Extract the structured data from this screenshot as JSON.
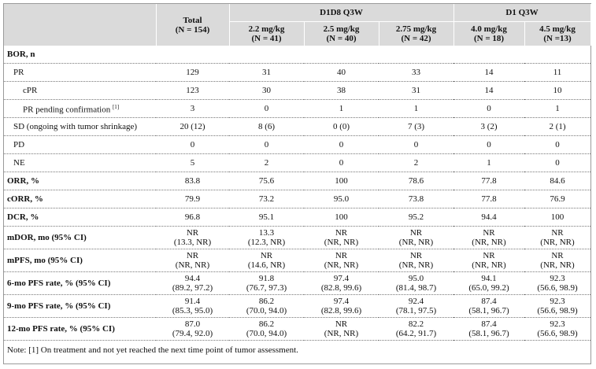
{
  "table": {
    "header": {
      "total": {
        "title": "Total",
        "n": "(N = 154)"
      },
      "groups": [
        {
          "title": "D1D8 Q3W",
          "columns": [
            {
              "dose": "2.2 mg/kg",
              "n": "(N = 41)"
            },
            {
              "dose": "2.5 mg/kg",
              "n": "(N = 40)"
            },
            {
              "dose": "2.75 mg/kg",
              "n": "(N = 42)"
            }
          ]
        },
        {
          "title": "D1 Q3W",
          "columns": [
            {
              "dose": "4.0 mg/kg",
              "n": "(N = 18)"
            },
            {
              "dose": "4.5 mg/kg",
              "n": "(N =13)"
            }
          ]
        }
      ]
    },
    "rows": [
      {
        "label": "BOR, n"
      },
      {
        "label": "PR",
        "values": [
          "129",
          "31",
          "40",
          "33",
          "14",
          "11"
        ]
      },
      {
        "label": "cPR",
        "values": [
          "123",
          "30",
          "38",
          "31",
          "14",
          "10"
        ]
      },
      {
        "label": "PR pending confirmation",
        "sup": "[1]",
        "values": [
          "3",
          "0",
          "1",
          "1",
          "0",
          "1"
        ]
      },
      {
        "label": "SD (ongoing with tumor shrinkage)",
        "values": [
          "20 (12)",
          "8 (6)",
          "0 (0)",
          "7 (3)",
          "3 (2)",
          "2 (1)"
        ]
      },
      {
        "label": "PD",
        "values": [
          "0",
          "0",
          "0",
          "0",
          "0",
          "0"
        ]
      },
      {
        "label": "NE",
        "values": [
          "5",
          "2",
          "0",
          "2",
          "1",
          "0"
        ]
      },
      {
        "label": "ORR, %",
        "values": [
          "83.8",
          "75.6",
          "100",
          "78.6",
          "77.8",
          "84.6"
        ]
      },
      {
        "label": "cORR, %",
        "values": [
          "79.9",
          "73.2",
          "95.0",
          "73.8",
          "77.8",
          "76.9"
        ]
      },
      {
        "label": "DCR, %",
        "values": [
          "96.8",
          "95.1",
          "100",
          "95.2",
          "94.4",
          "100"
        ]
      },
      {
        "label": "mDOR, mo (95% CI)",
        "values": [
          {
            "value": "NR",
            "ci": "(13.3, NR)"
          },
          {
            "value": "13.3",
            "ci": "(12.3, NR)"
          },
          {
            "value": "NR",
            "ci": "(NR, NR)"
          },
          {
            "value": "NR",
            "ci": "(NR, NR)"
          },
          {
            "value": "NR",
            "ci": "(NR, NR)"
          },
          {
            "value": "NR",
            "ci": "(NR, NR)"
          }
        ]
      },
      {
        "label": "mPFS, mo (95% CI)",
        "values": [
          {
            "value": "NR",
            "ci": "(NR, NR)"
          },
          {
            "value": "NR",
            "ci": "(14.6, NR)"
          },
          {
            "value": "NR",
            "ci": "(NR, NR)"
          },
          {
            "value": "NR",
            "ci": "(NR, NR)"
          },
          {
            "value": "NR",
            "ci": "(NR, NR)"
          },
          {
            "value": "NR",
            "ci": "(NR, NR)"
          }
        ]
      },
      {
        "label": "6-mo PFS rate, % (95% CI)",
        "values": [
          {
            "value": "94.4",
            "ci": "(89.2, 97.2)"
          },
          {
            "value": "91.8",
            "ci": "(76.7, 97.3)"
          },
          {
            "value": "97.4",
            "ci": "(82.8, 99.6)"
          },
          {
            "value": "95.0",
            "ci": "(81.4, 98.7)"
          },
          {
            "value": "94.1",
            "ci": "(65.0, 99.2)"
          },
          {
            "value": "92.3",
            "ci": "(56.6, 98.9)"
          }
        ]
      },
      {
        "label": "9-mo PFS rate, % (95% CI)",
        "values": [
          {
            "value": "91.4",
            "ci": "(85.3, 95.0)"
          },
          {
            "value": "86.2",
            "ci": "(70.0, 94.0)"
          },
          {
            "value": "97.4",
            "ci": "(82.8, 99.6)"
          },
          {
            "value": "92.4",
            "ci": "(78.1, 97.5)"
          },
          {
            "value": "87.4",
            "ci": "(58.1, 96.7)"
          },
          {
            "value": "92.3",
            "ci": "(56.6, 98.9)"
          }
        ]
      },
      {
        "label": "12-mo PFS rate, % (95% CI)",
        "values": [
          {
            "value": "87.0",
            "ci": "(79.4, 92.0)"
          },
          {
            "value": "86.2",
            "ci": "(70.0, 94.0)"
          },
          {
            "value": "NR",
            "ci": "(NR, NR)"
          },
          {
            "value": "82.2",
            "ci": "(64.2, 91.7)"
          },
          {
            "value": "87.4",
            "ci": "(58.1, 96.7)"
          },
          {
            "value": "92.3",
            "ci": "(56.6, 98.9)"
          }
        ]
      }
    ],
    "note": "Note: [1] On treatment and not yet reached the next time point of tumor assessment."
  }
}
